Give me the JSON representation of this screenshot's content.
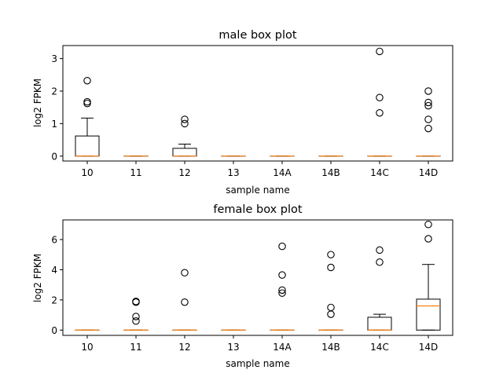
{
  "chart_data": [
    {
      "type": "box",
      "title": "male box plot",
      "xlabel": "sample name",
      "ylabel": "log2 FPKM",
      "categories": [
        "10",
        "11",
        "12",
        "13",
        "14A",
        "14B",
        "14C",
        "14D"
      ],
      "ylim": [
        -0.15,
        3.4
      ],
      "yticks": [
        0,
        1,
        2,
        3
      ],
      "boxes": [
        {
          "q1": 0.0,
          "median": 0.0,
          "q3": 0.62,
          "whislo": 0.0,
          "whishi": 1.17,
          "fliers": [
            1.62,
            1.67,
            2.32
          ]
        },
        {
          "q1": 0.0,
          "median": 0.0,
          "q3": 0.0,
          "whislo": 0.0,
          "whishi": 0.0,
          "fliers": []
        },
        {
          "q1": 0.0,
          "median": 0.0,
          "q3": 0.24,
          "whislo": 0.0,
          "whishi": 0.37,
          "fliers": [
            1.0,
            1.13
          ]
        },
        {
          "q1": 0.0,
          "median": 0.0,
          "q3": 0.0,
          "whislo": 0.0,
          "whishi": 0.0,
          "fliers": []
        },
        {
          "q1": 0.0,
          "median": 0.0,
          "q3": 0.0,
          "whislo": 0.0,
          "whishi": 0.0,
          "fliers": []
        },
        {
          "q1": 0.0,
          "median": 0.0,
          "q3": 0.0,
          "whislo": 0.0,
          "whishi": 0.0,
          "fliers": []
        },
        {
          "q1": 0.0,
          "median": 0.0,
          "q3": 0.0,
          "whislo": 0.0,
          "whishi": 0.0,
          "fliers": [
            1.33,
            1.8,
            3.22
          ]
        },
        {
          "q1": 0.0,
          "median": 0.0,
          "q3": 0.0,
          "whislo": 0.0,
          "whishi": 0.0,
          "fliers": [
            0.85,
            1.13,
            1.55,
            1.65,
            2.0
          ]
        }
      ]
    },
    {
      "type": "box",
      "title": "female box plot",
      "xlabel": "sample name",
      "ylabel": "log2 FPKM",
      "categories": [
        "10",
        "11",
        "12",
        "13",
        "14A",
        "14B",
        "14C",
        "14D"
      ],
      "ylim": [
        -0.35,
        7.3
      ],
      "yticks": [
        0,
        2,
        4,
        6
      ],
      "boxes": [
        {
          "q1": 0.0,
          "median": 0.0,
          "q3": 0.0,
          "whislo": 0.0,
          "whishi": 0.0,
          "fliers": []
        },
        {
          "q1": 0.0,
          "median": 0.0,
          "q3": 0.0,
          "whislo": 0.0,
          "whishi": 0.0,
          "fliers": [
            0.6,
            0.9,
            1.85,
            1.9
          ]
        },
        {
          "q1": 0.0,
          "median": 0.0,
          "q3": 0.0,
          "whislo": 0.0,
          "whishi": 0.0,
          "fliers": [
            1.85,
            3.8
          ]
        },
        {
          "q1": 0.0,
          "median": 0.0,
          "q3": 0.0,
          "whislo": 0.0,
          "whishi": 0.0,
          "fliers": []
        },
        {
          "q1": 0.0,
          "median": 0.0,
          "q3": 0.0,
          "whislo": 0.0,
          "whishi": 0.0,
          "fliers": [
            2.45,
            2.65,
            3.65,
            5.55
          ]
        },
        {
          "q1": 0.0,
          "median": 0.0,
          "q3": 0.0,
          "whislo": 0.0,
          "whishi": 0.0,
          "fliers": [
            1.05,
            1.5,
            4.15,
            5.0
          ]
        },
        {
          "q1": 0.0,
          "median": 0.0,
          "q3": 0.85,
          "whislo": 0.0,
          "whishi": 1.05,
          "fliers": [
            4.5,
            5.3
          ]
        },
        {
          "q1": 0.0,
          "median": 1.6,
          "q3": 2.05,
          "whislo": 0.0,
          "whishi": 4.35,
          "fliers": [
            6.05,
            7.0
          ]
        }
      ]
    }
  ],
  "colors": {
    "median": "#ff7f0e",
    "box": "#000000",
    "background": "#ffffff"
  }
}
